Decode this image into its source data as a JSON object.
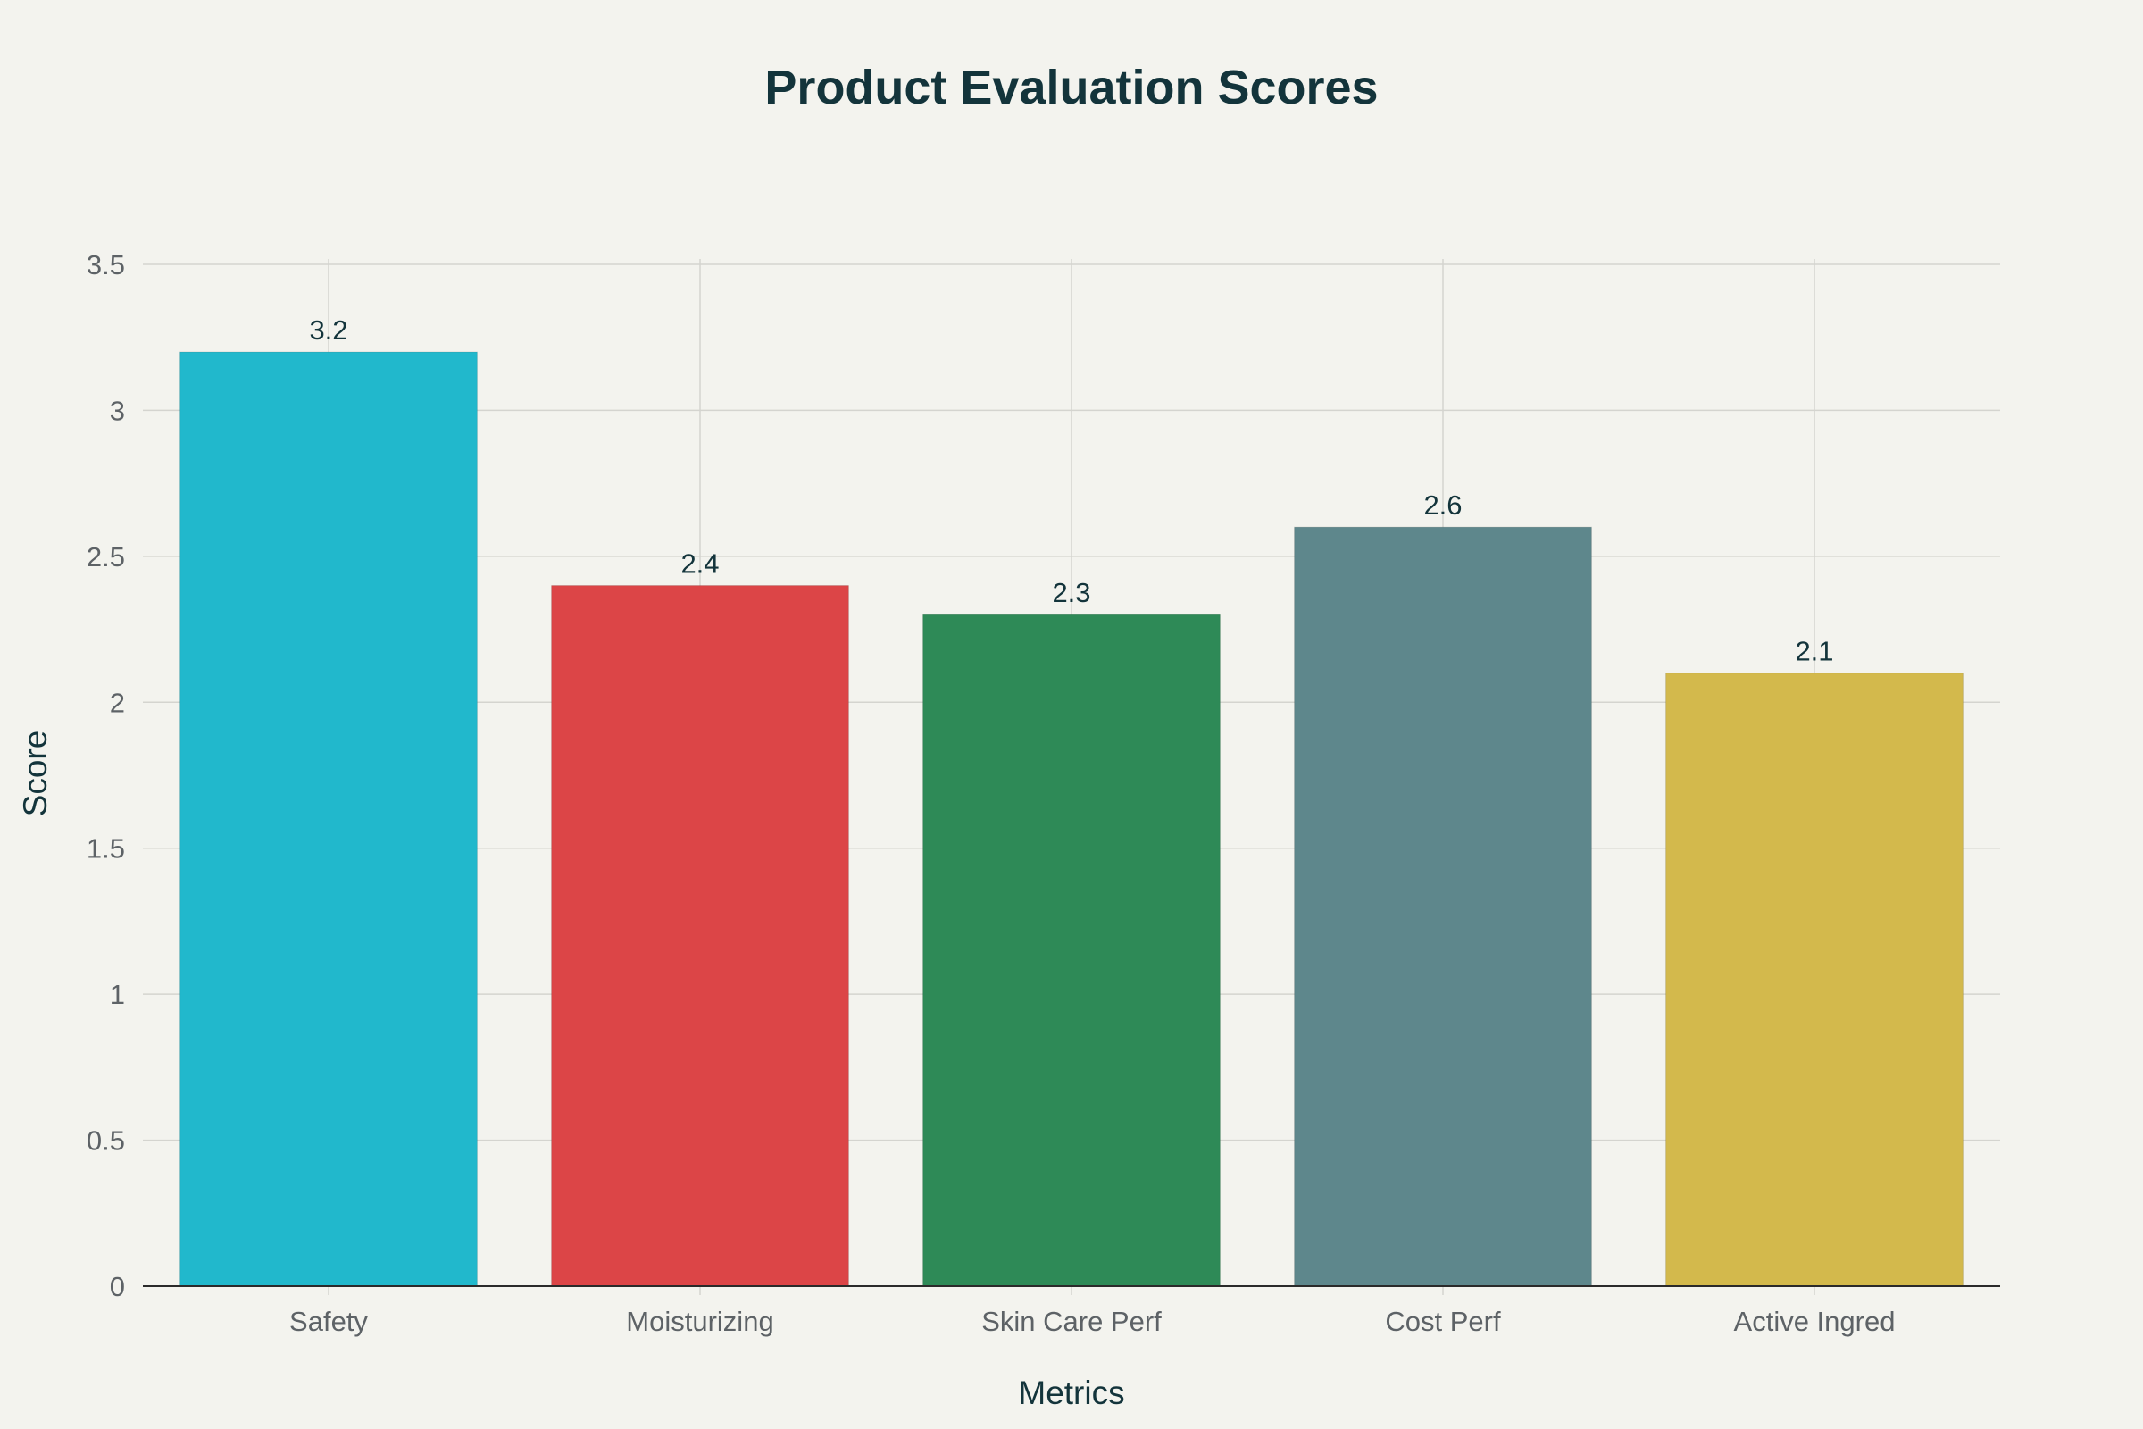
{
  "chart_data": {
    "type": "bar",
    "title": "Product Evaluation Scores",
    "xlabel": "Metrics",
    "ylabel": "Score",
    "categories": [
      "Safety",
      "Moisturizing",
      "Skin Care Perf",
      "Cost Perf",
      "Active Ingred"
    ],
    "values": [
      3.2,
      2.4,
      2.3,
      2.6,
      2.1
    ],
    "data_labels": [
      "3.2",
      "2.4",
      "2.3",
      "2.6",
      "2.1"
    ],
    "colors": [
      "#21b8cc",
      "#dc4547",
      "#2e8a57",
      "#5e878c",
      "#d3b94c"
    ],
    "ylim": [
      0,
      3.5
    ],
    "yticks": [
      0,
      0.5,
      1,
      1.5,
      2,
      2.5,
      3,
      3.5
    ],
    "ytick_labels": [
      "0",
      "0.5",
      "1",
      "1.5",
      "2",
      "2.5",
      "3",
      "3.5"
    ],
    "grid": true,
    "legend": "none"
  }
}
